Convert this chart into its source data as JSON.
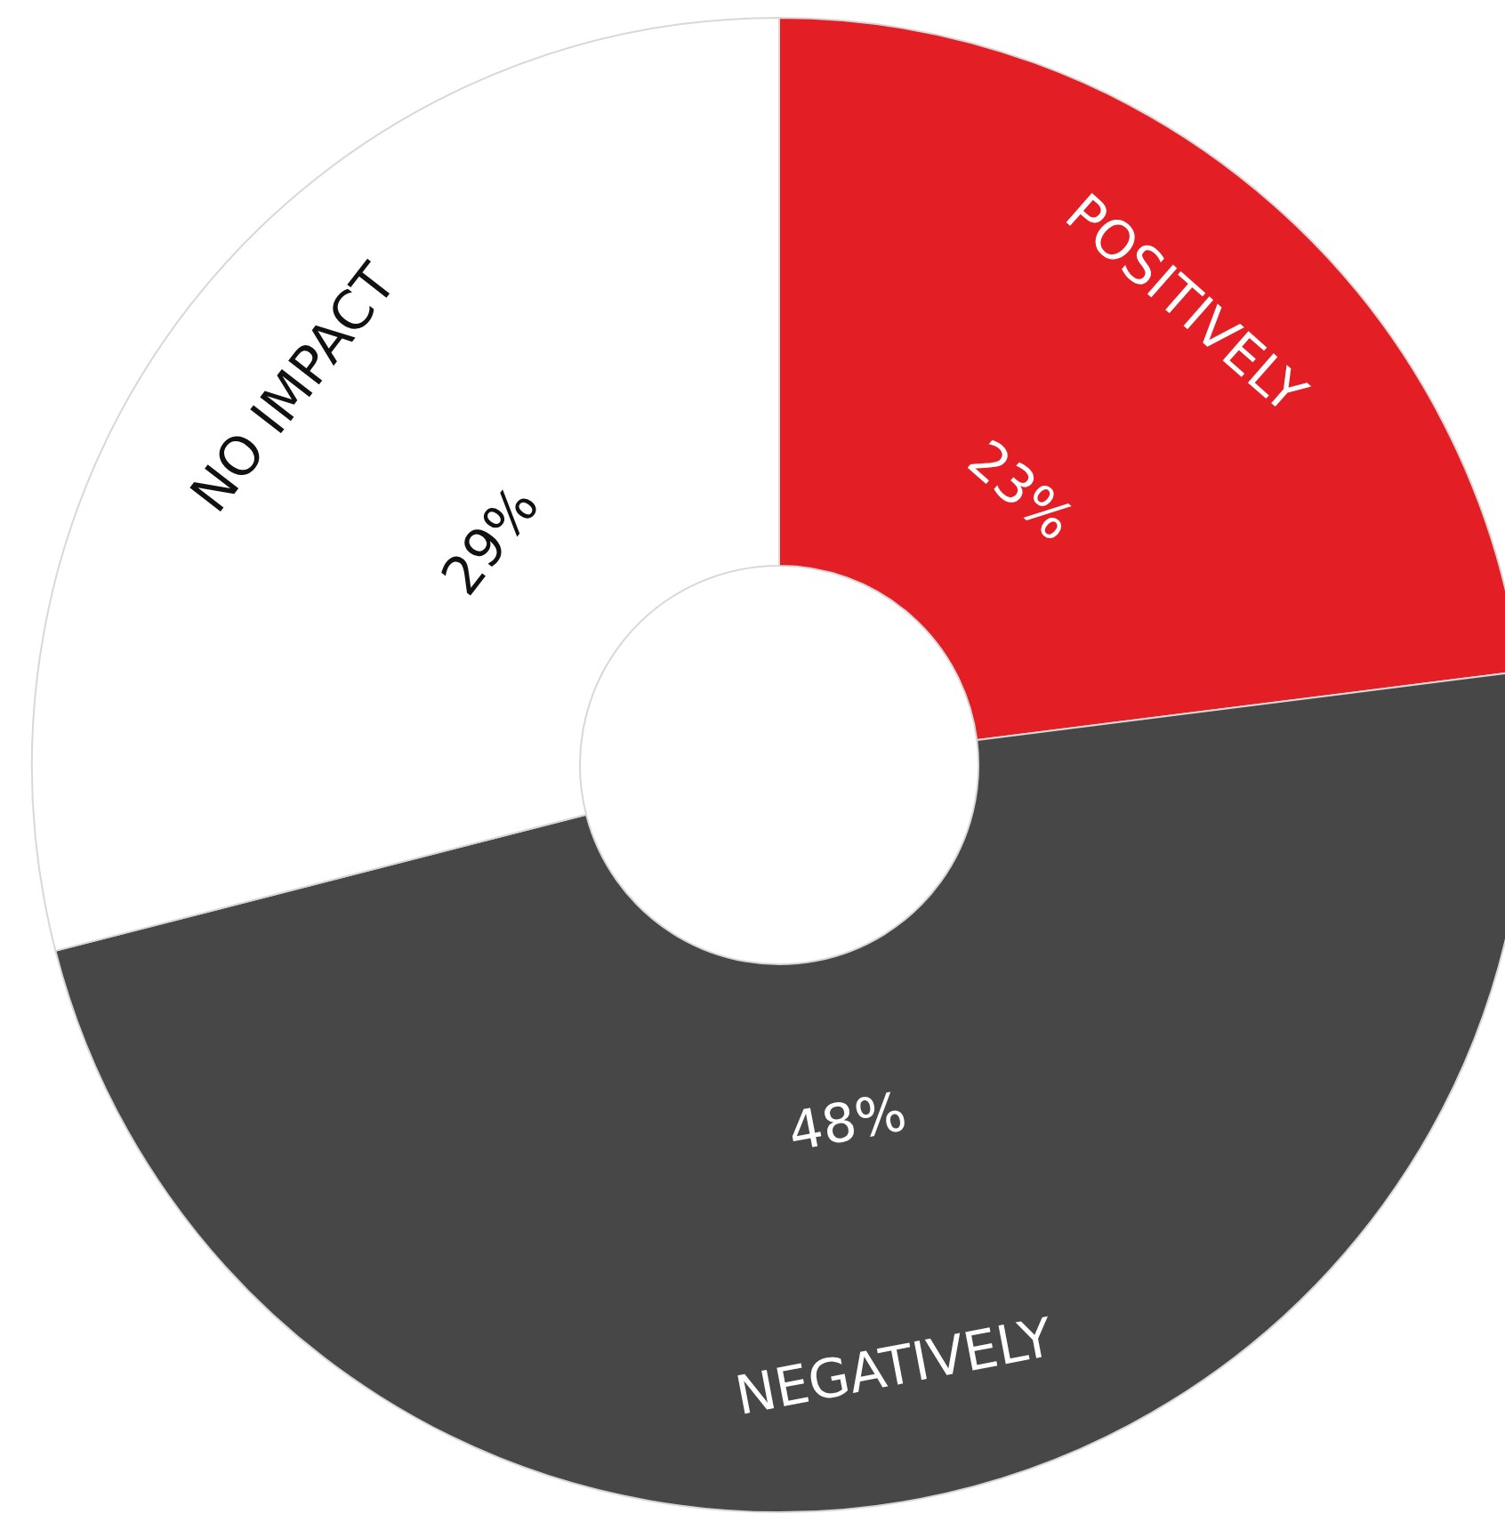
{
  "chart_data": {
    "type": "donut",
    "categories": [
      "POSITIVELY",
      "NEGATIVELY",
      "NO IMPACT"
    ],
    "values": [
      23,
      48,
      29
    ],
    "colors": [
      "#e31e24",
      "#474747",
      "#ffffff"
    ],
    "value_labels": [
      "23%",
      "48%",
      "29%"
    ],
    "legend": false
  }
}
